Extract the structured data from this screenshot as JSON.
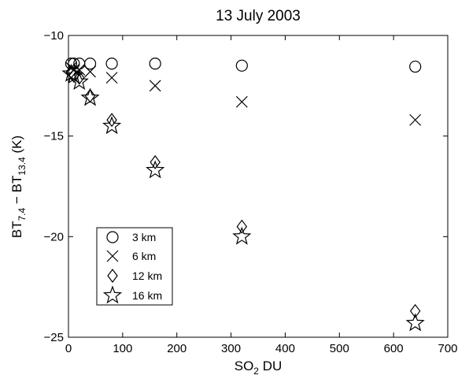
{
  "chart_data": {
    "type": "scatter",
    "title": "13 July 2003",
    "xlabel": {
      "main": "SO",
      "sub": "2",
      "rest": " DU"
    },
    "ylabel": {
      "a": "BT",
      "a_sub": "7.4",
      "mid": " − BT",
      "b_sub": "13.4",
      "rest": " (K)"
    },
    "xlim": [
      0,
      700
    ],
    "ylim": [
      -25,
      -10
    ],
    "xticks": [
      0,
      100,
      200,
      300,
      400,
      500,
      600,
      700
    ],
    "yticks": [
      -25,
      -20,
      -15,
      -10
    ],
    "grid": false,
    "legend_position": "lower-left",
    "series": [
      {
        "name": "3 km",
        "marker": "circle",
        "x": [
          5,
          10,
          20,
          40,
          80,
          160,
          320,
          640
        ],
        "y": [
          -11.4,
          -11.4,
          -11.4,
          -11.4,
          -11.4,
          -11.4,
          -11.5,
          -11.55
        ]
      },
      {
        "name": "6 km",
        "marker": "x",
        "x": [
          5,
          10,
          20,
          40,
          80,
          160,
          320,
          640
        ],
        "y": [
          -11.6,
          -11.7,
          -11.7,
          -11.8,
          -12.1,
          -12.5,
          -13.3,
          -14.2
        ]
      },
      {
        "name": "12 km",
        "marker": "diamond",
        "x": [
          5,
          10,
          20,
          40,
          80,
          160,
          320,
          640
        ],
        "y": [
          -11.8,
          -12.0,
          -12.1,
          -13.0,
          -14.2,
          -16.3,
          -19.5,
          -23.7
        ]
      },
      {
        "name": "16 km",
        "marker": "star",
        "x": [
          5,
          10,
          20,
          40,
          80,
          160,
          320,
          640
        ],
        "y": [
          -11.9,
          -12.0,
          -12.3,
          -13.1,
          -14.5,
          -16.7,
          -20.0,
          -24.3
        ]
      }
    ]
  }
}
